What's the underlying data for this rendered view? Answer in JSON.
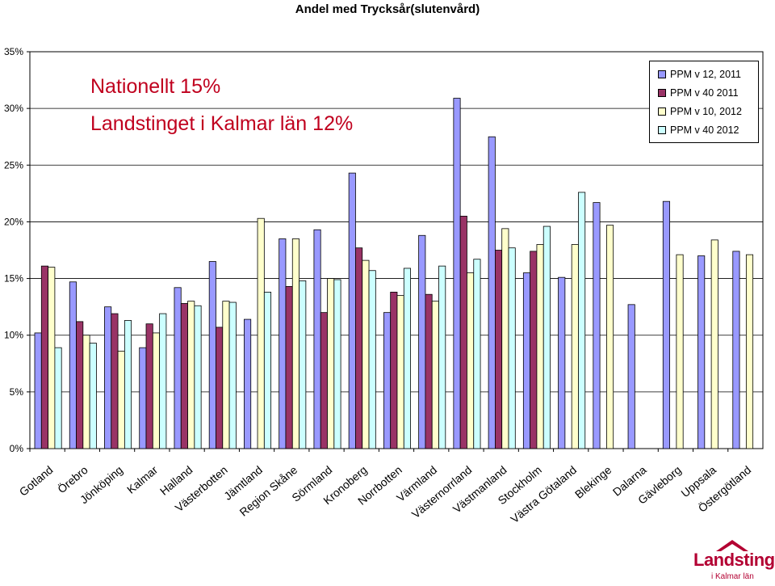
{
  "chart_data": {
    "type": "bar",
    "title": "Andel med Trycksår(slutenvård)",
    "categories": [
      "Gotland",
      "Örebro",
      "Jönköping",
      "Kalmar",
      "Halland",
      "Västerbotten",
      "Jämtland",
      "Region Skåne",
      "Sörmland",
      "Kronoberg",
      "Norrbotten",
      "Värmland",
      "Västernorrland",
      "Västmanland",
      "Stockholm",
      "Västra Götaland",
      "Blekinge",
      "Dalarna",
      "Gävleborg",
      "Uppsala",
      "Östergötland"
    ],
    "series": [
      {
        "name": "PPM v 12, 2011",
        "color": "#9999ff",
        "values": [
          10.2,
          14.7,
          12.5,
          8.9,
          14.2,
          16.5,
          11.4,
          18.5,
          19.3,
          24.3,
          12.0,
          18.8,
          30.9,
          27.5,
          15.5,
          15.1,
          21.7,
          12.7,
          21.8,
          17.0,
          17.4
        ]
      },
      {
        "name": "PPM v 40 2011",
        "color": "#993366",
        "values": [
          16.1,
          11.2,
          11.9,
          11.0,
          12.8,
          10.7,
          null,
          14.3,
          12.0,
          17.7,
          13.8,
          13.6,
          20.5,
          17.5,
          17.4,
          null,
          null,
          null,
          null,
          null,
          null
        ]
      },
      {
        "name": "PPM v 10, 2012",
        "color": "#ffffcc",
        "values": [
          16.0,
          10.0,
          8.6,
          10.2,
          13.0,
          13.0,
          20.3,
          18.5,
          15.0,
          16.6,
          13.5,
          13.0,
          15.5,
          19.4,
          18.0,
          18.0,
          19.7,
          null,
          17.1,
          18.4,
          17.1
        ]
      },
      {
        "name": "PPM v 40 2012",
        "color": "#ccffff",
        "values": [
          8.9,
          9.3,
          11.3,
          11.9,
          12.6,
          12.9,
          13.8,
          14.8,
          14.9,
          15.7,
          15.9,
          16.1,
          16.7,
          17.7,
          19.6,
          22.6,
          null,
          null,
          null,
          null,
          null
        ]
      }
    ],
    "ylim": [
      0,
      35
    ],
    "yticks": [
      0,
      5,
      10,
      15,
      20,
      25,
      30,
      35
    ],
    "ytick_labels": [
      "0%",
      "5%",
      "10%",
      "15%",
      "20%",
      "25%",
      "30%",
      "35%"
    ],
    "grid": true,
    "legend_position": "top-right"
  },
  "annotations": {
    "national": "Nationellt 15%",
    "county": "Landstinget i Kalmar län 12%"
  },
  "logo": {
    "brand": "Landstinget",
    "sub": "i Kalmar län",
    "color": "#b30032"
  }
}
